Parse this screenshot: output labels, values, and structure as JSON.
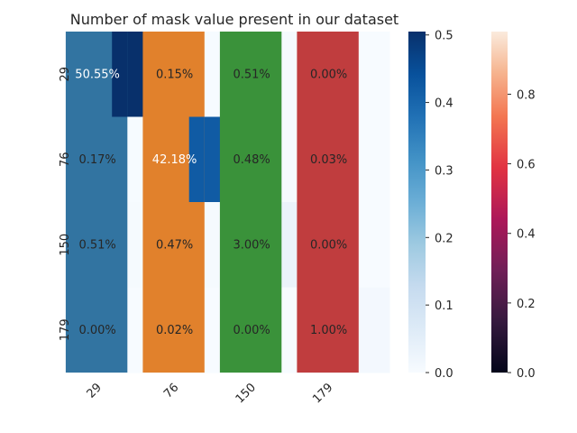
{
  "chart_data": {
    "type": "heatmap",
    "title": "Number of mask value present in our dataset",
    "categories": [
      "29",
      "76",
      "150",
      "179"
    ],
    "row_labels": [
      "29",
      "76",
      "150",
      "179"
    ],
    "col_labels": [
      "29",
      "76",
      "150",
      "179"
    ],
    "matrix": [
      [
        0.5055,
        0.0015,
        0.0051,
        0.0
      ],
      [
        0.0017,
        0.4218,
        0.0048,
        0.0003
      ],
      [
        0.0051,
        0.0047,
        0.03,
        0.0
      ],
      [
        0.0,
        0.0002,
        0.0,
        0.01
      ]
    ],
    "cell_text": [
      [
        "50.55%",
        "0.15%",
        "0.51%",
        "0.00%"
      ],
      [
        "0.17%",
        "42.18%",
        "0.48%",
        "0.03%"
      ],
      [
        "0.51%",
        "0.47%",
        "3.00%",
        "0.00%"
      ],
      [
        "0.00%",
        "0.02%",
        "0.00%",
        "1.00%"
      ]
    ],
    "overlay_bars": {
      "categories": [
        "29",
        "76",
        "150",
        "179"
      ],
      "values": [
        1,
        1,
        1,
        1
      ],
      "colors": [
        "#3274a1",
        "#e1812c",
        "#3a923a",
        "#c03d3e"
      ]
    },
    "colorbars": [
      {
        "cmap": "Blues",
        "range": [
          0,
          0.505
        ],
        "ticks": [
          "0.0",
          "0.1",
          "0.2",
          "0.3",
          "0.4",
          "0.5"
        ],
        "tick_values": [
          0,
          0.1,
          0.2,
          0.3,
          0.4,
          0.5
        ]
      },
      {
        "cmap": "rocket",
        "range": [
          0,
          0.98
        ],
        "ticks": [
          "0.0",
          "0.2",
          "0.4",
          "0.6",
          "0.8"
        ],
        "tick_values": [
          0,
          0.2,
          0.4,
          0.6,
          0.8
        ]
      }
    ],
    "grid": false
  }
}
